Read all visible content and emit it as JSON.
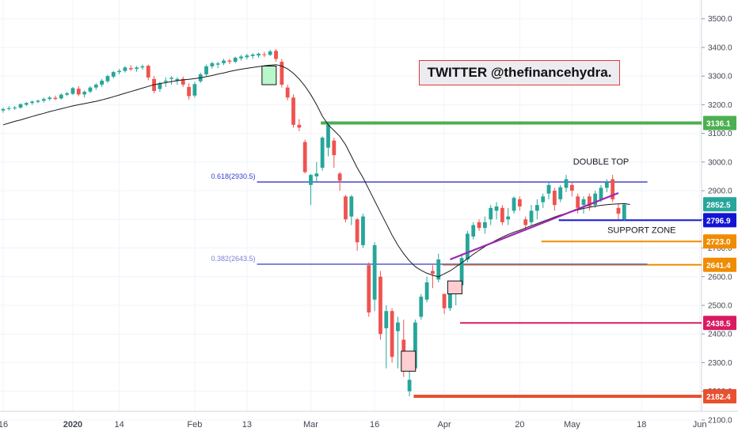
{
  "watermark": "TWITTER @thefinancehydra.",
  "chart_data": {
    "type": "candlestick",
    "ylim": [
      2050,
      3560
    ],
    "y_ticks": [
      2100,
      2200,
      2300,
      2400,
      2500,
      2600,
      2700,
      2800,
      2900,
      3000,
      3100,
      3200,
      3300,
      3400,
      3500
    ],
    "y_tick_labels": [
      "2100.0",
      "2200.0",
      "2300.0",
      "2400.0",
      "2500.0",
      "2600.0",
      "2700.0",
      "2800.0",
      "2900.0",
      "3000.0",
      "3100.0",
      "3200.0",
      "3300.0",
      "3400.0",
      "3500.0"
    ],
    "x_tick_labels": [
      {
        "label": "16",
        "bar": 0
      },
      {
        "label": "2020",
        "bar": 12
      },
      {
        "label": "14",
        "bar": 20
      },
      {
        "label": "Feb",
        "bar": 33
      },
      {
        "label": "13",
        "bar": 42
      },
      {
        "label": "Mar",
        "bar": 53
      },
      {
        "label": "16",
        "bar": 64
      },
      {
        "label": "Apr",
        "bar": 76
      },
      {
        "label": "20",
        "bar": 89
      },
      {
        "label": "May",
        "bar": 98
      },
      {
        "label": "18",
        "bar": 110
      },
      {
        "label": "Jun",
        "bar": 120
      }
    ],
    "candles": [
      {
        "o": 3180,
        "h": 3190,
        "l": 3172,
        "c": 3185
      },
      {
        "o": 3185,
        "h": 3195,
        "l": 3180,
        "c": 3188
      },
      {
        "o": 3188,
        "h": 3196,
        "l": 3182,
        "c": 3190
      },
      {
        "o": 3190,
        "h": 3205,
        "l": 3186,
        "c": 3202
      },
      {
        "o": 3200,
        "h": 3210,
        "l": 3195,
        "c": 3206
      },
      {
        "o": 3206,
        "h": 3215,
        "l": 3200,
        "c": 3211
      },
      {
        "o": 3210,
        "h": 3218,
        "l": 3205,
        "c": 3214
      },
      {
        "o": 3214,
        "h": 3225,
        "l": 3208,
        "c": 3220
      },
      {
        "o": 3220,
        "h": 3230,
        "l": 3214,
        "c": 3225
      },
      {
        "o": 3224,
        "h": 3232,
        "l": 3216,
        "c": 3220
      },
      {
        "o": 3222,
        "h": 3240,
        "l": 3218,
        "c": 3235
      },
      {
        "o": 3235,
        "h": 3245,
        "l": 3230,
        "c": 3240
      },
      {
        "o": 3238,
        "h": 3262,
        "l": 3234,
        "c": 3258
      },
      {
        "o": 3256,
        "h": 3265,
        "l": 3230,
        "c": 3236
      },
      {
        "o": 3236,
        "h": 3250,
        "l": 3225,
        "c": 3245
      },
      {
        "o": 3246,
        "h": 3265,
        "l": 3240,
        "c": 3260
      },
      {
        "o": 3260,
        "h": 3275,
        "l": 3252,
        "c": 3270
      },
      {
        "o": 3270,
        "h": 3290,
        "l": 3262,
        "c": 3284
      },
      {
        "o": 3282,
        "h": 3305,
        "l": 3276,
        "c": 3300
      },
      {
        "o": 3298,
        "h": 3318,
        "l": 3292,
        "c": 3314
      },
      {
        "o": 3314,
        "h": 3325,
        "l": 3306,
        "c": 3318
      },
      {
        "o": 3318,
        "h": 3335,
        "l": 3312,
        "c": 3330
      },
      {
        "o": 3328,
        "h": 3338,
        "l": 3318,
        "c": 3324
      },
      {
        "o": 3325,
        "h": 3335,
        "l": 3315,
        "c": 3330
      },
      {
        "o": 3330,
        "h": 3340,
        "l": 3322,
        "c": 3334
      },
      {
        "o": 3336,
        "h": 3340,
        "l": 3285,
        "c": 3295
      },
      {
        "o": 3290,
        "h": 3300,
        "l": 3240,
        "c": 3248
      },
      {
        "o": 3255,
        "h": 3280,
        "l": 3245,
        "c": 3275
      },
      {
        "o": 3280,
        "h": 3295,
        "l": 3262,
        "c": 3284
      },
      {
        "o": 3290,
        "h": 3300,
        "l": 3270,
        "c": 3294
      },
      {
        "o": 3284,
        "h": 3296,
        "l": 3270,
        "c": 3290
      },
      {
        "o": 3290,
        "h": 3298,
        "l": 3262,
        "c": 3270
      },
      {
        "o": 3262,
        "h": 3275,
        "l": 3218,
        "c": 3230
      },
      {
        "o": 3232,
        "h": 3280,
        "l": 3225,
        "c": 3272
      },
      {
        "o": 3282,
        "h": 3312,
        "l": 3276,
        "c": 3306
      },
      {
        "o": 3306,
        "h": 3340,
        "l": 3300,
        "c": 3334
      },
      {
        "o": 3334,
        "h": 3350,
        "l": 3326,
        "c": 3345
      },
      {
        "o": 3340,
        "h": 3350,
        "l": 3328,
        "c": 3344
      },
      {
        "o": 3345,
        "h": 3360,
        "l": 3338,
        "c": 3354
      },
      {
        "o": 3354,
        "h": 3360,
        "l": 3342,
        "c": 3350
      },
      {
        "o": 3350,
        "h": 3368,
        "l": 3345,
        "c": 3364
      },
      {
        "o": 3362,
        "h": 3374,
        "l": 3354,
        "c": 3368
      },
      {
        "o": 3366,
        "h": 3378,
        "l": 3358,
        "c": 3372
      },
      {
        "o": 3370,
        "h": 3380,
        "l": 3360,
        "c": 3375
      },
      {
        "o": 3372,
        "h": 3382,
        "l": 3364,
        "c": 3378
      },
      {
        "o": 3376,
        "h": 3385,
        "l": 3366,
        "c": 3374
      },
      {
        "o": 3374,
        "h": 3392,
        "l": 3370,
        "c": 3386
      },
      {
        "o": 3388,
        "h": 3394,
        "l": 3350,
        "c": 3360
      },
      {
        "o": 3350,
        "h": 3360,
        "l": 3260,
        "c": 3270
      },
      {
        "o": 3260,
        "h": 3270,
        "l": 3215,
        "c": 3225
      },
      {
        "o": 3225,
        "h": 3236,
        "l": 3120,
        "c": 3130
      },
      {
        "o": 3130,
        "h": 3150,
        "l": 3108,
        "c": 3120
      },
      {
        "o": 3070,
        "h": 3078,
        "l": 2960,
        "c": 2965
      },
      {
        "o": 2920,
        "h": 2958,
        "l": 2850,
        "c": 2955
      },
      {
        "o": 2950,
        "h": 3000,
        "l": 2930,
        "c": 2960
      },
      {
        "o": 2980,
        "h": 3090,
        "l": 2970,
        "c": 3085
      },
      {
        "o": 3050,
        "h": 3136,
        "l": 3020,
        "c": 3130
      },
      {
        "o": 3075,
        "h": 3085,
        "l": 2980,
        "c": 3024
      },
      {
        "o": 2960,
        "h": 2965,
        "l": 2900,
        "c": 2935
      },
      {
        "o": 2880,
        "h": 2885,
        "l": 2790,
        "c": 2800
      },
      {
        "o": 2810,
        "h": 2885,
        "l": 2780,
        "c": 2880
      },
      {
        "o": 2800,
        "h": 2805,
        "l": 2690,
        "c": 2720
      },
      {
        "o": 2710,
        "h": 2820,
        "l": 2700,
        "c": 2810
      },
      {
        "o": 2640,
        "h": 2650,
        "l": 2460,
        "c": 2475
      },
      {
        "o": 2520,
        "h": 2720,
        "l": 2480,
        "c": 2710
      },
      {
        "o": 2600,
        "h": 2620,
        "l": 2380,
        "c": 2400
      },
      {
        "o": 2420,
        "h": 2500,
        "l": 2280,
        "c": 2480
      },
      {
        "o": 2480,
        "h": 2490,
        "l": 2300,
        "c": 2320
      },
      {
        "o": 2410,
        "h": 2460,
        "l": 2280,
        "c": 2440
      },
      {
        "o": 2380,
        "h": 2450,
        "l": 2250,
        "c": 2290
      },
      {
        "o": 2200,
        "h": 2330,
        "l": 2182,
        "c": 2240
      },
      {
        "o": 2280,
        "h": 2450,
        "l": 2270,
        "c": 2440
      },
      {
        "o": 2460,
        "h": 2540,
        "l": 2450,
        "c": 2530
      },
      {
        "o": 2520,
        "h": 2600,
        "l": 2510,
        "c": 2580
      },
      {
        "o": 2620,
        "h": 2640,
        "l": 2560,
        "c": 2610
      },
      {
        "o": 2590,
        "h": 2680,
        "l": 2580,
        "c": 2660
      },
      {
        "o": 2540,
        "h": 2540,
        "l": 2470,
        "c": 2490
      },
      {
        "o": 2490,
        "h": 2560,
        "l": 2480,
        "c": 2540
      },
      {
        "o": 2540,
        "h": 2570,
        "l": 2500,
        "c": 2560
      },
      {
        "o": 2570,
        "h": 2680,
        "l": 2550,
        "c": 2665
      },
      {
        "o": 2660,
        "h": 2760,
        "l": 2650,
        "c": 2750
      },
      {
        "o": 2740,
        "h": 2790,
        "l": 2730,
        "c": 2780
      },
      {
        "o": 2790,
        "h": 2800,
        "l": 2760,
        "c": 2770
      },
      {
        "o": 2770,
        "h": 2810,
        "l": 2750,
        "c": 2790
      },
      {
        "o": 2800,
        "h": 2850,
        "l": 2780,
        "c": 2840
      },
      {
        "o": 2830,
        "h": 2860,
        "l": 2800,
        "c": 2845
      },
      {
        "o": 2840,
        "h": 2850,
        "l": 2780,
        "c": 2790
      },
      {
        "o": 2800,
        "h": 2840,
        "l": 2780,
        "c": 2810
      },
      {
        "o": 2830,
        "h": 2880,
        "l": 2820,
        "c": 2875
      },
      {
        "o": 2870,
        "h": 2880,
        "l": 2830,
        "c": 2845
      },
      {
        "o": 2800,
        "h": 2810,
        "l": 2760,
        "c": 2780
      },
      {
        "o": 2790,
        "h": 2850,
        "l": 2780,
        "c": 2830
      },
      {
        "o": 2830,
        "h": 2870,
        "l": 2800,
        "c": 2850
      },
      {
        "o": 2860,
        "h": 2890,
        "l": 2840,
        "c": 2880
      },
      {
        "o": 2890,
        "h": 2930,
        "l": 2870,
        "c": 2920
      },
      {
        "o": 2900,
        "h": 2910,
        "l": 2830,
        "c": 2850
      },
      {
        "o": 2870,
        "h": 2920,
        "l": 2860,
        "c": 2912
      },
      {
        "o": 2910,
        "h": 2955,
        "l": 2895,
        "c": 2940
      },
      {
        "o": 2920,
        "h": 2930,
        "l": 2880,
        "c": 2900
      },
      {
        "o": 2880,
        "h": 2890,
        "l": 2820,
        "c": 2840
      },
      {
        "o": 2850,
        "h": 2880,
        "l": 2820,
        "c": 2870
      },
      {
        "o": 2880,
        "h": 2890,
        "l": 2830,
        "c": 2845
      },
      {
        "o": 2850,
        "h": 2900,
        "l": 2840,
        "c": 2890
      },
      {
        "o": 2870,
        "h": 2920,
        "l": 2860,
        "c": 2910
      },
      {
        "o": 2910,
        "h": 2940,
        "l": 2895,
        "c": 2930
      },
      {
        "o": 2940,
        "h": 2955,
        "l": 2860,
        "c": 2870
      },
      {
        "o": 2840,
        "h": 2855,
        "l": 2800,
        "c": 2820
      },
      {
        "o": 2800,
        "h": 2855,
        "l": 2795,
        "c": 2852
      }
    ],
    "moving_average": [
      3130,
      3136,
      3142,
      3147,
      3153,
      3159,
      3165,
      3170,
      3176,
      3181,
      3186,
      3191,
      3196,
      3200,
      3204,
      3208,
      3212,
      3217,
      3222,
      3228,
      3234,
      3240,
      3246,
      3252,
      3258,
      3264,
      3270,
      3274,
      3277,
      3281,
      3284,
      3287,
      3289,
      3291,
      3294,
      3298,
      3302,
      3307,
      3311,
      3316,
      3320,
      3324,
      3327,
      3330,
      3333,
      3336,
      3338,
      3340,
      3335,
      3325,
      3310,
      3290,
      3265,
      3235,
      3200,
      3160,
      3130,
      3110,
      3090,
      3060,
      3020,
      2980,
      2945,
      2905,
      2865,
      2825,
      2785,
      2745,
      2710,
      2680,
      2655,
      2635,
      2622,
      2612,
      2605,
      2600,
      2610,
      2620,
      2634,
      2648,
      2663,
      2678,
      2692,
      2705,
      2717,
      2728,
      2738,
      2747,
      2755,
      2762,
      2770,
      2778,
      2785,
      2793,
      2800,
      2808,
      2815,
      2821,
      2827,
      2833,
      2838,
      2842,
      2846,
      2849,
      2851,
      2853,
      2854,
      2855,
      2852
    ],
    "horizontal_levels": [
      {
        "price": 3136.1,
        "label": "3136.1",
        "color": "#4caf50",
        "from_bar": 55
      },
      {
        "price": 2930.5,
        "color": "#3535c8",
        "from_bar": 44,
        "to_bar": 111
      },
      {
        "price": 2796.9,
        "label": "2796.9",
        "color": "#1414d4",
        "from_bar": 96
      },
      {
        "price": 2723.0,
        "label": "2723.0",
        "color": "#f08c00",
        "from_bar": 93
      },
      {
        "price": 2641.4,
        "label": "2641.4",
        "color": "#f08c00",
        "from_bar": 76
      },
      {
        "price": 2643.5,
        "color": "#5c5ccc",
        "from_bar": 44,
        "to_bar": 111
      },
      {
        "price": 2438.5,
        "label": "2438.5",
        "color": "#d81b60",
        "from_bar": 79
      },
      {
        "price": 2182.4,
        "label": "2182.4",
        "color": "#e8502f",
        "from_bar": 71
      }
    ],
    "current_price": {
      "price": 2852.5,
      "label": "2852.5",
      "color": "#26a69a"
    },
    "fib_labels": [
      {
        "text": "0.618(2930.5)",
        "price": 2930.5,
        "color": "#3b3bd0"
      },
      {
        "text": "0.382(2643.5)",
        "price": 2643.5,
        "color": "#7d7dd8"
      }
    ],
    "annotations": [
      {
        "text": "DOUBLE TOP",
        "price": 2992,
        "bar": 103
      },
      {
        "text": "SUPPORT ZONE",
        "price": 2752,
        "bar": 110
      }
    ]
  }
}
